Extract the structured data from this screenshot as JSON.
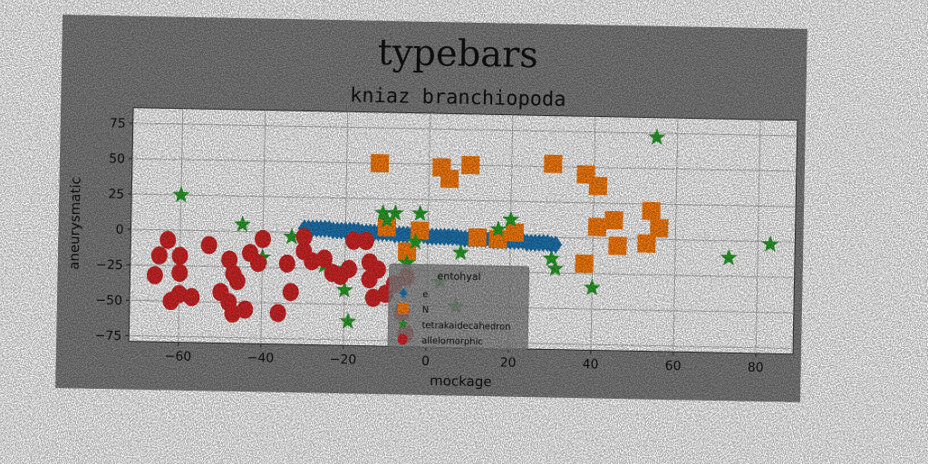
{
  "chart_data": {
    "type": "scatter",
    "title": "typebars",
    "subtitle": "kniaz branchiopoda",
    "xlabel": "mockage",
    "ylabel": "aneurysmatic",
    "xlim": [
      -72,
      89
    ],
    "ylim": [
      -79,
      86
    ],
    "xticks": [
      -60,
      -40,
      -20,
      0,
      20,
      40,
      60,
      80
    ],
    "yticks": [
      -75,
      -50,
      -25,
      0,
      25,
      50,
      75
    ],
    "grid": true,
    "legend": {
      "placement": "lower-center",
      "title": "entohyal",
      "entries": [
        "e",
        "N",
        "tetrakaidecahedron",
        "allelomorphic"
      ]
    },
    "colors": {
      "frame_bg": "#808080",
      "axes_bg": "#ffffff",
      "grid": "#b8b8b8",
      "legend_bg": "#8a8a8a"
    },
    "series": [
      {
        "name": "e",
        "marker": "diamond",
        "color": "#1f77b4",
        "points": [
          [
            -30,
            3
          ],
          [
            -29,
            3
          ],
          [
            -28,
            3
          ],
          [
            -27,
            3
          ],
          [
            -26,
            3
          ],
          [
            -25,
            3
          ],
          [
            -24,
            3
          ],
          [
            -23,
            2
          ],
          [
            -22,
            2
          ],
          [
            -21,
            2
          ],
          [
            -20,
            2
          ],
          [
            -19,
            2
          ],
          [
            -18,
            2
          ],
          [
            -17,
            2
          ],
          [
            -16,
            1
          ],
          [
            -15,
            1
          ],
          [
            -14,
            1
          ],
          [
            -13,
            1
          ],
          [
            -12,
            1
          ],
          [
            -11,
            1
          ],
          [
            -10,
            1
          ],
          [
            -9,
            1
          ],
          [
            -8,
            0
          ],
          [
            -7,
            0
          ],
          [
            -6,
            0
          ],
          [
            -5,
            0
          ],
          [
            -4,
            0
          ],
          [
            -3,
            0
          ],
          [
            -2,
            0
          ],
          [
            -1,
            0
          ],
          [
            0,
            -1
          ],
          [
            1,
            -1
          ],
          [
            2,
            -1
          ],
          [
            3,
            -1
          ],
          [
            4,
            -1
          ],
          [
            5,
            -1
          ],
          [
            6,
            -1
          ],
          [
            7,
            -1
          ],
          [
            8,
            -2
          ],
          [
            9,
            -2
          ],
          [
            10,
            -2
          ],
          [
            11,
            -2
          ],
          [
            12,
            -2
          ],
          [
            13,
            -2
          ],
          [
            14,
            -2
          ],
          [
            15,
            -2
          ],
          [
            16,
            -3
          ],
          [
            17,
            -3
          ],
          [
            18,
            -3
          ],
          [
            19,
            -3
          ],
          [
            20,
            -3
          ],
          [
            21,
            -3
          ],
          [
            22,
            -3
          ],
          [
            23,
            -3
          ],
          [
            24,
            -4
          ],
          [
            25,
            -4
          ],
          [
            26,
            -4
          ],
          [
            27,
            -4
          ],
          [
            28,
            -4
          ],
          [
            29,
            -4
          ],
          [
            30,
            -5
          ],
          [
            31,
            -5
          ]
        ]
      },
      {
        "name": "N",
        "marker": "square",
        "color": "#ff7f0e",
        "points": [
          [
            -12,
            50
          ],
          [
            3,
            48
          ],
          [
            5,
            40
          ],
          [
            10,
            50
          ],
          [
            30,
            52
          ],
          [
            38,
            45
          ],
          [
            41,
            37
          ],
          [
            -10,
            5
          ],
          [
            -2,
            3
          ],
          [
            12,
            -1
          ],
          [
            17,
            -2
          ],
          [
            21,
            3
          ],
          [
            41,
            8
          ],
          [
            45,
            13
          ],
          [
            46,
            -5
          ],
          [
            53,
            -3
          ],
          [
            54,
            20
          ],
          [
            56,
            8
          ],
          [
            38,
            -18
          ],
          [
            -5,
            -12
          ]
        ]
      },
      {
        "name": "tetrakaidecahedron",
        "marker": "star",
        "color": "#2ca02c",
        "points": [
          [
            55,
            72
          ],
          [
            -60,
            25
          ],
          [
            -45,
            5
          ],
          [
            -11,
            15
          ],
          [
            -8,
            15
          ],
          [
            -2,
            15
          ],
          [
            20,
            12
          ],
          [
            17,
            5
          ],
          [
            -10,
            10
          ],
          [
            -3,
            -5
          ],
          [
            -33,
            -3
          ],
          [
            -40,
            -18
          ],
          [
            -25,
            -23
          ],
          [
            -20,
            -25
          ],
          [
            -20,
            -40
          ],
          [
            -19,
            -62
          ],
          [
            8,
            -12
          ],
          [
            30,
            -15
          ],
          [
            31,
            -22
          ],
          [
            40,
            -35
          ],
          [
            73,
            -12
          ],
          [
            83,
            -2
          ],
          [
            -5,
            -20
          ],
          [
            3,
            -33
          ],
          [
            7,
            -50
          ]
        ]
      },
      {
        "name": "allelomorphic",
        "marker": "circle",
        "color": "#d62728",
        "points": [
          [
            -63,
            -7
          ],
          [
            -65,
            -18
          ],
          [
            -60,
            -18
          ],
          [
            -53,
            -10
          ],
          [
            -48,
            -20
          ],
          [
            -47,
            -30
          ],
          [
            -46,
            -35
          ],
          [
            -40,
            -5
          ],
          [
            -41,
            -22
          ],
          [
            -43,
            -15
          ],
          [
            -60,
            -30
          ],
          [
            -66,
            -32
          ],
          [
            -60,
            -45
          ],
          [
            -62,
            -50
          ],
          [
            -57,
            -47
          ],
          [
            -50,
            -43
          ],
          [
            -48,
            -50
          ],
          [
            -47,
            -58
          ],
          [
            -44,
            -55
          ],
          [
            -36,
            -57
          ],
          [
            -33,
            -42
          ],
          [
            -34,
            -22
          ],
          [
            -30,
            -13
          ],
          [
            -30,
            -3
          ],
          [
            -28,
            -20
          ],
          [
            -25,
            -18
          ],
          [
            -23,
            -28
          ],
          [
            -21,
            -30
          ],
          [
            -19,
            -25
          ],
          [
            -18,
            -5
          ],
          [
            -15,
            -5
          ],
          [
            -14,
            -20
          ],
          [
            -12,
            -25
          ],
          [
            -14,
            -32
          ],
          [
            -13,
            -45
          ],
          [
            -10,
            -42
          ],
          [
            -8,
            -35
          ],
          [
            -5,
            -30
          ],
          [
            -6,
            -55
          ],
          [
            -5,
            -70
          ]
        ]
      }
    ]
  }
}
